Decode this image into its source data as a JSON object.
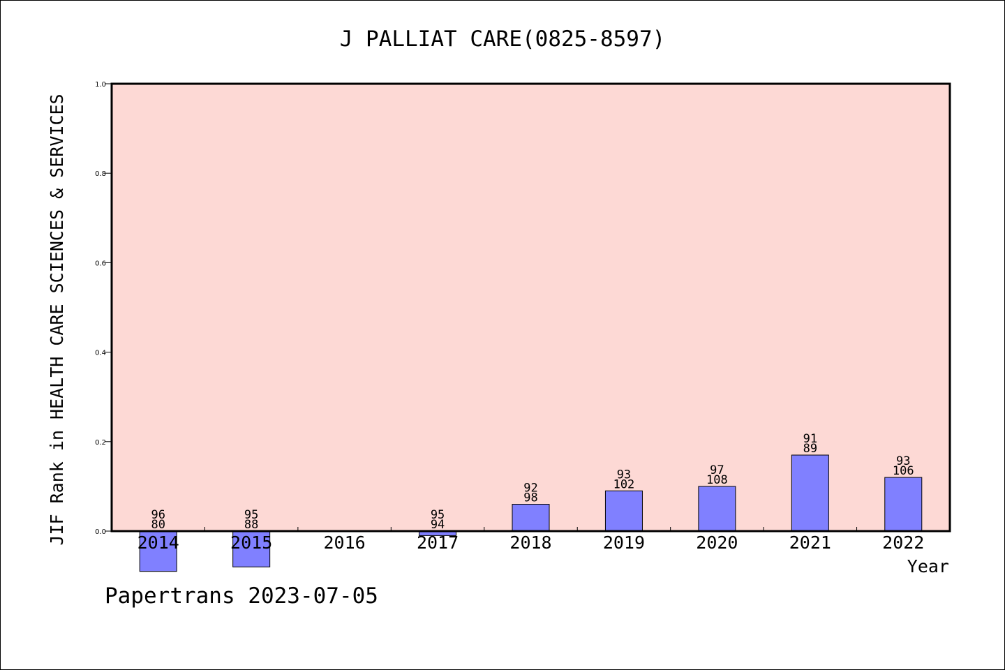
{
  "chart_data": {
    "type": "bar",
    "title": "J PALLIAT CARE(0825-8597)",
    "xlabel": "Year",
    "ylabel": "JIF Rank in HEALTH CARE SCIENCES & SERVICES",
    "footer": "Papertrans 2023-07-05",
    "ylim": [
      0.0,
      1.0
    ],
    "yticks": [
      "0.0",
      "0.2",
      "0.4",
      "0.6",
      "0.8",
      "1.0"
    ],
    "categories": [
      "2014",
      "2015",
      "2016",
      "2017",
      "2018",
      "2019",
      "2020",
      "2021",
      "2022"
    ],
    "values": [
      -0.09,
      -0.08,
      null,
      -0.01,
      0.06,
      0.09,
      0.1,
      0.17,
      0.12
    ],
    "label_top": [
      "96",
      "95",
      "",
      "95",
      "92",
      "93",
      "97",
      "91",
      "93"
    ],
    "label_bottom": [
      "80",
      "88",
      "",
      "94",
      "98",
      "102",
      "108",
      "89",
      "106"
    ],
    "grid": false,
    "colors": {
      "plot_bg": "#fdd9d5",
      "bar": "#8080ff"
    }
  }
}
